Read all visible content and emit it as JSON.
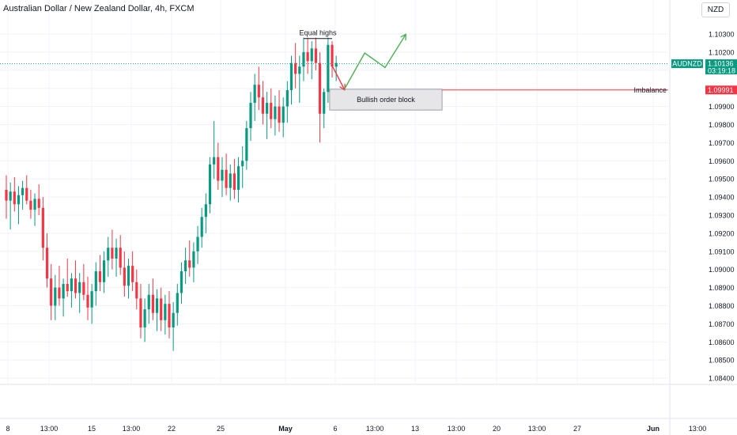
{
  "header": {
    "symbol_title": "Australian Dollar / New Zealand Dollar, 4h, FXCM",
    "currency_button": "NZD"
  },
  "colors": {
    "bull": "#089981",
    "bear": "#f23645",
    "grid": "#f0f3fa",
    "axis_text": "#131722",
    "price_line": "#22ab94",
    "imbalance": "#f23645",
    "projection": "#4caf50",
    "bearish_arrow": "#f23645"
  },
  "chart_data": {
    "type": "candlestick",
    "timeframe": "4h",
    "y_axis": {
      "ticks": [
        "1.10300",
        "1.10200",
        "1.10100",
        "1.10000",
        "1.09900",
        "1.09800",
        "1.09700",
        "1.09600",
        "1.09500",
        "1.09400",
        "1.09300",
        "1.09200",
        "1.09100",
        "1.09000",
        "1.08900",
        "1.08800",
        "1.08700",
        "1.08600",
        "1.08500",
        "1.08400"
      ],
      "range": [
        1.0839,
        1.1042
      ]
    },
    "x_axis": {
      "ticks": [
        "8",
        "13:00",
        "15",
        "13:00",
        "22",
        "25",
        "May",
        "6",
        "13:00",
        "13",
        "13:00",
        "20",
        "13:00",
        "27",
        "Jun",
        "13:00"
      ]
    },
    "current_price": {
      "symbol": "AUDNZD",
      "value": "1.10136",
      "countdown": "03:19:18",
      "price": 1.10136
    },
    "imbalance_level": {
      "label": "Imbalance",
      "value": "1.09991",
      "price": 1.09991
    },
    "annotations": {
      "equal_highs": "Equal highs",
      "order_block": "Bullish order block"
    },
    "candles": [
      [
        1.0944,
        1.0952,
        1.0928,
        1.0938
      ],
      [
        1.0938,
        1.0948,
        1.0922,
        1.0943
      ],
      [
        1.0943,
        1.0951,
        1.0932,
        1.0936
      ],
      [
        1.0936,
        1.0946,
        1.0925,
        1.0941
      ],
      [
        1.0941,
        1.0949,
        1.0933,
        1.0945
      ],
      [
        1.0945,
        1.0952,
        1.0936,
        1.0938
      ],
      [
        1.0938,
        1.0944,
        1.0928,
        1.0933
      ],
      [
        1.0933,
        1.0942,
        1.0924,
        1.0939
      ],
      [
        1.0939,
        1.0947,
        1.093,
        1.0934
      ],
      [
        1.0934,
        1.094,
        1.0905,
        1.0912
      ],
      [
        1.0912,
        1.092,
        1.089,
        1.0895
      ],
      [
        1.0895,
        1.0903,
        1.0872,
        1.088
      ],
      [
        1.088,
        1.0897,
        1.0872,
        1.089
      ],
      [
        1.089,
        1.0902,
        1.088,
        1.0884
      ],
      [
        1.0884,
        1.0895,
        1.0874,
        1.0892
      ],
      [
        1.0892,
        1.0906,
        1.0885,
        1.0888
      ],
      [
        1.0888,
        1.0898,
        1.0879,
        1.0895
      ],
      [
        1.0895,
        1.0905,
        1.0884,
        1.0887
      ],
      [
        1.0887,
        1.0898,
        1.0876,
        1.0893
      ],
      [
        1.0893,
        1.0903,
        1.0883,
        1.0886
      ],
      [
        1.0886,
        1.0896,
        1.0872,
        1.0879
      ],
      [
        1.0879,
        1.0892,
        1.087,
        1.0888
      ],
      [
        1.0888,
        1.0904,
        1.088,
        1.0899
      ],
      [
        1.0899,
        1.0908,
        1.0888,
        1.0893
      ],
      [
        1.0893,
        1.091,
        1.0887,
        1.0905
      ],
      [
        1.0905,
        1.0918,
        1.0896,
        1.0912
      ],
      [
        1.0912,
        1.0922,
        1.09,
        1.0906
      ],
      [
        1.0906,
        1.0917,
        1.0896,
        1.0912
      ],
      [
        1.0912,
        1.0919,
        1.0897,
        1.0901
      ],
      [
        1.0901,
        1.091,
        1.0885,
        1.0891
      ],
      [
        1.0891,
        1.0906,
        1.0884,
        1.0902
      ],
      [
        1.0902,
        1.091,
        1.0888,
        1.0893
      ],
      [
        1.0893,
        1.09,
        1.0878,
        1.0884
      ],
      [
        1.0884,
        1.0892,
        1.0862,
        1.0868
      ],
      [
        1.0868,
        1.0884,
        1.086,
        1.0878
      ],
      [
        1.0878,
        1.0892,
        1.087,
        1.0886
      ],
      [
        1.0886,
        1.0895,
        1.0872,
        1.0876
      ],
      [
        1.0876,
        1.0889,
        1.0866,
        1.0884
      ],
      [
        1.0884,
        1.089,
        1.0866,
        1.0872
      ],
      [
        1.0872,
        1.0886,
        1.0864,
        1.0881
      ],
      [
        1.0881,
        1.0888,
        1.0862,
        1.0868
      ],
      [
        1.0868,
        1.0882,
        1.0855,
        1.0876
      ],
      [
        1.0876,
        1.0892,
        1.0869,
        1.0887
      ],
      [
        1.0887,
        1.0904,
        1.0881,
        1.0899
      ],
      [
        1.0899,
        1.0912,
        1.0892,
        1.0905
      ],
      [
        1.0905,
        1.0916,
        1.0896,
        1.0901
      ],
      [
        1.0901,
        1.0915,
        1.0893,
        1.091
      ],
      [
        1.091,
        1.0924,
        1.0903,
        1.0918
      ],
      [
        1.0918,
        1.0934,
        1.0912,
        1.0929
      ],
      [
        1.0929,
        1.0942,
        1.092,
        1.0936
      ],
      [
        1.0936,
        1.0962,
        1.0931,
        1.0958
      ],
      [
        1.0958,
        1.0982,
        1.095,
        1.0962
      ],
      [
        1.0962,
        1.097,
        1.0944,
        1.0949
      ],
      [
        1.0949,
        1.0962,
        1.094,
        1.0955
      ],
      [
        1.0955,
        1.0964,
        1.0941,
        1.0945
      ],
      [
        1.0945,
        1.0958,
        1.0938,
        1.0953
      ],
      [
        1.0953,
        1.0961,
        1.0939,
        1.0944
      ],
      [
        1.0944,
        1.0962,
        1.0937,
        1.0957
      ],
      [
        1.0957,
        1.0968,
        1.0945,
        1.096
      ],
      [
        1.096,
        1.0982,
        1.0955,
        1.0978
      ],
      [
        1.0978,
        1.0998,
        1.0971,
        1.0992
      ],
      [
        1.0992,
        1.1008,
        1.0982,
        1.1002
      ],
      [
        1.1002,
        1.1012,
        1.0988,
        1.0995
      ],
      [
        1.0995,
        1.1004,
        1.098,
        1.0986
      ],
      [
        1.0986,
        1.0998,
        1.0972,
        1.0992
      ],
      [
        1.0992,
        1.1,
        1.0978,
        1.0983
      ],
      [
        1.0983,
        1.0996,
        1.0974,
        1.099
      ],
      [
        1.099,
        1.0999,
        1.0976,
        1.0981
      ],
      [
        1.0981,
        1.0995,
        1.0973,
        1.099
      ],
      [
        1.099,
        1.1004,
        1.0981,
        1.0999
      ],
      [
        1.0999,
        1.1018,
        1.0991,
        1.1014
      ],
      [
        1.1014,
        1.1025,
        1.1,
        1.1008
      ],
      [
        1.1008,
        1.1018,
        1.0992,
        1.1012
      ],
      [
        1.1012,
        1.1028,
        1.1004,
        1.102
      ],
      [
        1.102,
        1.1028,
        1.1008,
        1.1015
      ],
      [
        1.1015,
        1.1026,
        1.1005,
        1.1022
      ],
      [
        1.1022,
        1.1028,
        1.101,
        1.1014
      ],
      [
        1.1014,
        1.102,
        1.097,
        1.0986
      ],
      [
        1.0986,
        1.1,
        1.0978,
        1.0998
      ],
      [
        1.0998,
        1.1028,
        1.0992,
        1.1024
      ],
      [
        1.1024,
        1.1026,
        1.1006,
        1.1012
      ],
      [
        1.1012,
        1.1018,
        1.1004,
        1.1014
      ]
    ],
    "trade_plan": {
      "bearish_move": [
        [
          1.10125,
          80
        ],
        [
          1.09995,
          83
        ]
      ],
      "bullish_projection": [
        [
          1.09995,
          83
        ],
        [
          1.10195,
          88
        ],
        [
          1.10115,
          93
        ],
        [
          1.10295,
          98
        ]
      ],
      "order_block": {
        "top": 1.09995,
        "bottom": 1.0988,
        "from_index": 79,
        "to_index": 107
      },
      "equal_highs": {
        "price": 1.10275,
        "from_index": 73,
        "to_index": 80
      }
    }
  }
}
